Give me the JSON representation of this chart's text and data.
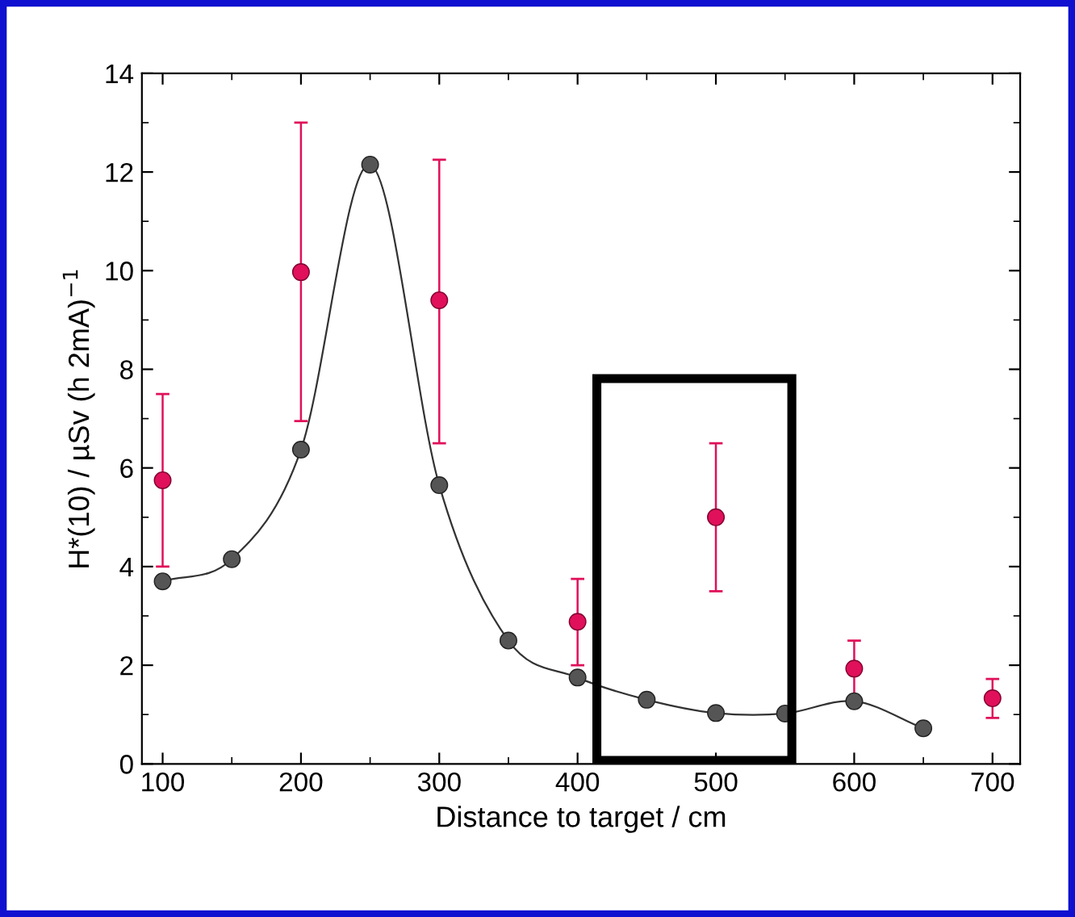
{
  "chart_data": {
    "type": "scatter",
    "xlabel": "Distance to target / cm",
    "ylabel": "H*(10) / µSv (h 2mA)$^{−1}$",
    "xlim": [
      85,
      720
    ],
    "xticks": [
      100,
      200,
      300,
      400,
      500,
      600,
      700
    ],
    "ylim": [
      0,
      14
    ],
    "yticks": [
      0,
      2,
      4,
      6,
      8,
      10,
      12,
      14
    ],
    "grid": false,
    "marker": "circle",
    "series": [
      {
        "type": "line",
        "color": "#555555",
        "x": [
          100,
          150,
          200,
          250,
          300,
          350,
          400,
          450,
          500,
          550,
          600,
          650
        ],
        "values": [
          3.7,
          4.15,
          6.37,
          12.15,
          5.65,
          2.5,
          1.75,
          1.3,
          1.03,
          1.02,
          1.27,
          0.72
        ]
      },
      {
        "color": "#e0105a",
        "x": [
          100,
          200,
          300,
          400,
          500,
          600,
          700
        ],
        "values": [
          5.75,
          9.97,
          9.4,
          2.88,
          5.0,
          1.93,
          1.33
        ],
        "errors": [
          [
            4.0,
            7.5
          ],
          [
            6.95,
            13.0
          ],
          [
            6.5,
            12.25
          ],
          [
            2.0,
            3.75
          ],
          [
            3.5,
            6.5
          ],
          [
            1.35,
            2.5
          ],
          [
            0.93,
            1.72
          ]
        ]
      }
    ]
  }
}
